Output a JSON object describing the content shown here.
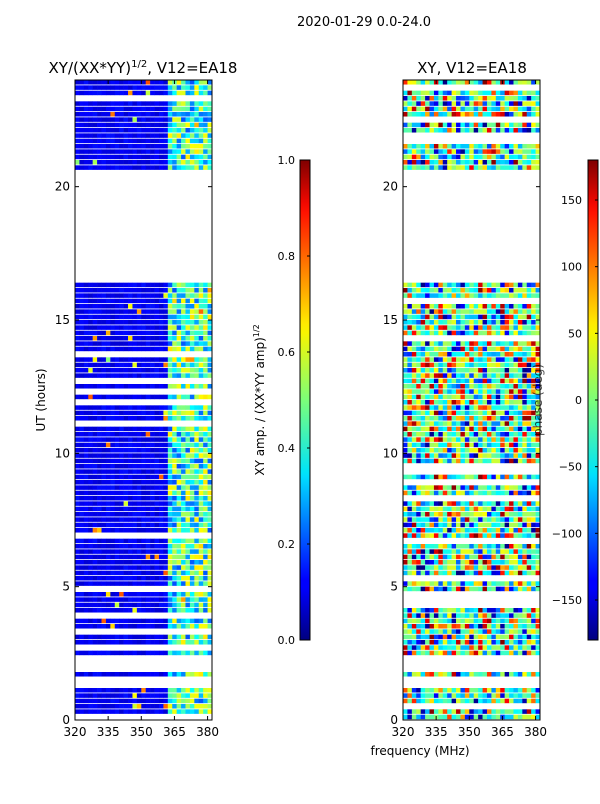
{
  "suptitle": "2020-01-29 0.0-24.0",
  "chart_data": [
    {
      "type": "heatmap",
      "title_main": "XY/(XX*YY)",
      "title_exp": "1/2",
      "title_rest": ", V12=EA18",
      "xlabel": "",
      "ylabel": "UT (hours)",
      "x_range": [
        320,
        382
      ],
      "y_range": [
        0,
        24
      ],
      "x_ticks": [
        320,
        335,
        350,
        365,
        380
      ],
      "y_ticks": [
        0,
        5,
        10,
        15,
        20
      ],
      "colormap": "jet",
      "colorbar": {
        "range": [
          0.0,
          1.0
        ],
        "ticks": [
          "0.0",
          "0.2",
          "0.4",
          "0.6",
          "0.8",
          "1.0"
        ],
        "label_main": "XY amp. / (XX*YY amp)",
        "label_exp": "1/2"
      },
      "data_gaps_hours": [
        [
          1.1,
          1.6
        ],
        [
          1.75,
          2.35
        ],
        [
          16.4,
          20.5
        ]
      ],
      "description_values": "low normalized amplitude (~0.1) across band; elevated (~0.3-0.6) near 362-380 MHz"
    },
    {
      "type": "heatmap",
      "title_main": "XY, V12=EA18",
      "xlabel": "frequency (MHz)",
      "ylabel": "",
      "x_range": [
        320,
        382
      ],
      "y_range": [
        0,
        24
      ],
      "x_ticks": [
        320,
        335,
        350,
        365,
        380
      ],
      "y_ticks": [
        0,
        5,
        10,
        15,
        20
      ],
      "colormap": "jet",
      "colorbar": {
        "range": [
          -180,
          180
        ],
        "ticks": [
          "-150",
          "-100",
          "-50",
          "0",
          "50",
          "100",
          "150"
        ],
        "label_main": "phase (deg)"
      },
      "data_gaps_hours": [
        [
          1.1,
          1.6
        ],
        [
          1.75,
          2.35
        ],
        [
          16.4,
          20.5
        ]
      ],
      "description_values": "phase varying across full range -180 to 180 deg"
    }
  ]
}
